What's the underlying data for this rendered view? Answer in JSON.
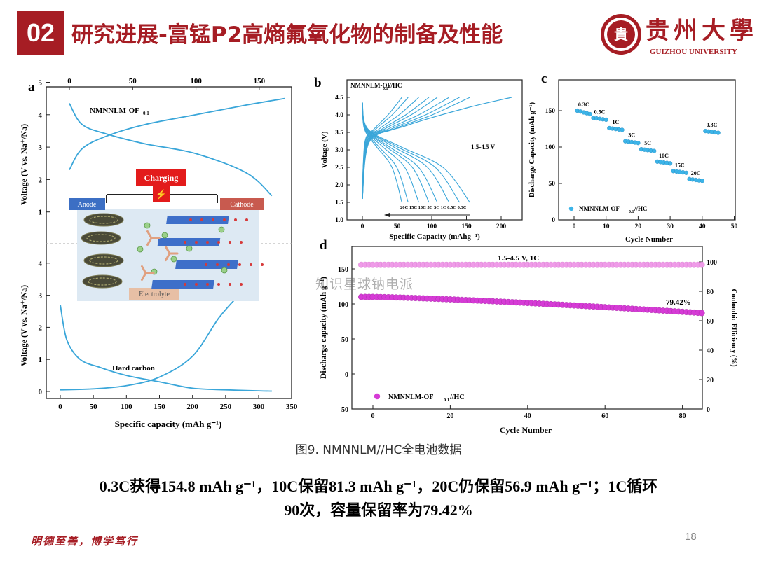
{
  "header": {
    "badge": "02",
    "title": "研究进展-富锰P2高熵氟氧化物的制备及性能"
  },
  "logo": {
    "name_cn": "贵州大學",
    "name_en": "GUIZHOU UNIVERSITY",
    "seal_text": "貴"
  },
  "colors": {
    "brand_red": "#a61d24",
    "cyan_curve": "#3aa6d9",
    "magenta": "#d63bd6",
    "ion_green": "#9bd08a"
  },
  "chart_data": [
    {
      "panel": "a",
      "type": "line",
      "top_axis_ticks": [
        "0",
        "50",
        "100",
        "150"
      ],
      "top": {
        "xlabel": "",
        "ylabel": "Voltage (V vs. Na⁺/Na)",
        "y_ticks": [
          "1",
          "2",
          "3",
          "4",
          "5"
        ],
        "label": "NMNNLM-OF",
        "label_sub": "0.1",
        "series": [
          {
            "name": "charge",
            "x": [
              0,
              10,
              30,
              60,
              100,
              140,
              170
            ],
            "y": [
              2.3,
              2.95,
              3.35,
              3.7,
              4.0,
              4.3,
              4.5
            ]
          },
          {
            "name": "discharge",
            "x": [
              0,
              10,
              30,
              60,
              100,
              140,
              160
            ],
            "y": [
              4.35,
              3.7,
              3.4,
              3.1,
              2.8,
              2.2,
              1.5
            ]
          }
        ]
      },
      "bottom": {
        "xlabel": "Specific capacity (mAh g⁻¹)",
        "ylabel": "Voltage (V vs. Na⁺/Na)",
        "x_ticks": [
          "0",
          "50",
          "100",
          "150",
          "200",
          "250",
          "300",
          "350"
        ],
        "y_ticks": [
          "0",
          "1",
          "2",
          "3",
          "4"
        ],
        "label": "Hard carbon",
        "series": [
          {
            "name": "sodiation",
            "x": [
              0,
              10,
              30,
              60,
              100,
              150,
              200,
              250,
              300,
              320
            ],
            "y": [
              2.7,
              1.6,
              1.0,
              0.75,
              0.5,
              0.3,
              0.1,
              0.05,
              0.02,
              0.01
            ]
          },
          {
            "name": "desodiation",
            "x": [
              0,
              50,
              100,
              150,
              200,
              240,
              270
            ],
            "y": [
              0.05,
              0.08,
              0.18,
              0.45,
              1.1,
              2.3,
              3.0
            ]
          }
        ]
      },
      "inset": {
        "title": "Charging",
        "anode": "Anode",
        "cathode": "Cathode",
        "electrolyte": "Electrolyte"
      }
    },
    {
      "panel": "b",
      "type": "line",
      "title": "NMNNLM-OF",
      "title_sub": "0.1",
      "title_suffix": "//HC",
      "annotation": "1.5-4.5 V",
      "xlabel": "Specific Capacity (mAhg⁻¹)",
      "ylabel": "Voltage (V)",
      "x_ticks": [
        "0",
        "50",
        "100",
        "150",
        "200"
      ],
      "y_ticks": [
        "1.0",
        "1.5",
        "2.0",
        "2.5",
        "3.0",
        "3.5",
        "4.0",
        "4.5"
      ],
      "rate_labels": "20C 15C 10C 5C 3C 1C 0.5C 0.3C",
      "discharge_capacities": [
        56.9,
        66,
        81.3,
        96,
        108,
        125,
        140,
        154.8
      ],
      "charge_capacity_0p3C": 215
    },
    {
      "panel": "c",
      "type": "scatter",
      "xlabel": "Cycle Number",
      "ylabel": "Discharge Capacity (mAh g⁻¹)",
      "x_ticks": [
        "0",
        "10",
        "20",
        "30",
        "40",
        "50"
      ],
      "y_ticks": [
        "0",
        "50",
        "100",
        "150"
      ],
      "legend": "NMNNLM-OF",
      "legend_sub": "0.1",
      "legend_suffix": "//HC",
      "rates": [
        "0.3C",
        "0.5C",
        "1C",
        "3C",
        "5C",
        "10C",
        "15C",
        "20C",
        "0.3C"
      ],
      "segment_values": [
        150,
        140,
        126,
        108,
        97,
        80,
        67,
        56,
        122
      ]
    },
    {
      "panel": "d",
      "type": "scatter",
      "annotation": "1.5-4.5 V,  1C",
      "retention": "79.42%",
      "xlabel": "Cycle Number",
      "ylabel": "Discharge capacity (mAh g⁻¹)",
      "y2label": "Coulombic Efficiency (%)",
      "x_ticks": [
        "0",
        "20",
        "40",
        "60",
        "80"
      ],
      "y_ticks": [
        "-50",
        "0",
        "50",
        "100",
        "150"
      ],
      "y2_ticks": [
        "0",
        "20",
        "40",
        "60",
        "80",
        "100"
      ],
      "legend": "NMNNLM-OF",
      "legend_sub": "0.1",
      "legend_suffix": "//HC",
      "capacity_start": 110,
      "capacity_end": 87,
      "coulombic_efficiency": 98
    }
  ],
  "caption": "图9. NMNNLM//HC全电池数据",
  "summary": {
    "line1": "0.3C获得154.8 mAh g⁻¹，10C保留81.3 mAh g⁻¹，20C仍保留56.9 mAh g⁻¹；1C循环",
    "line2": "90次，容量保留率为79.42%"
  },
  "motto": "明德至善，博学笃行",
  "page_number": "18",
  "watermark": "知识星球钠电派"
}
